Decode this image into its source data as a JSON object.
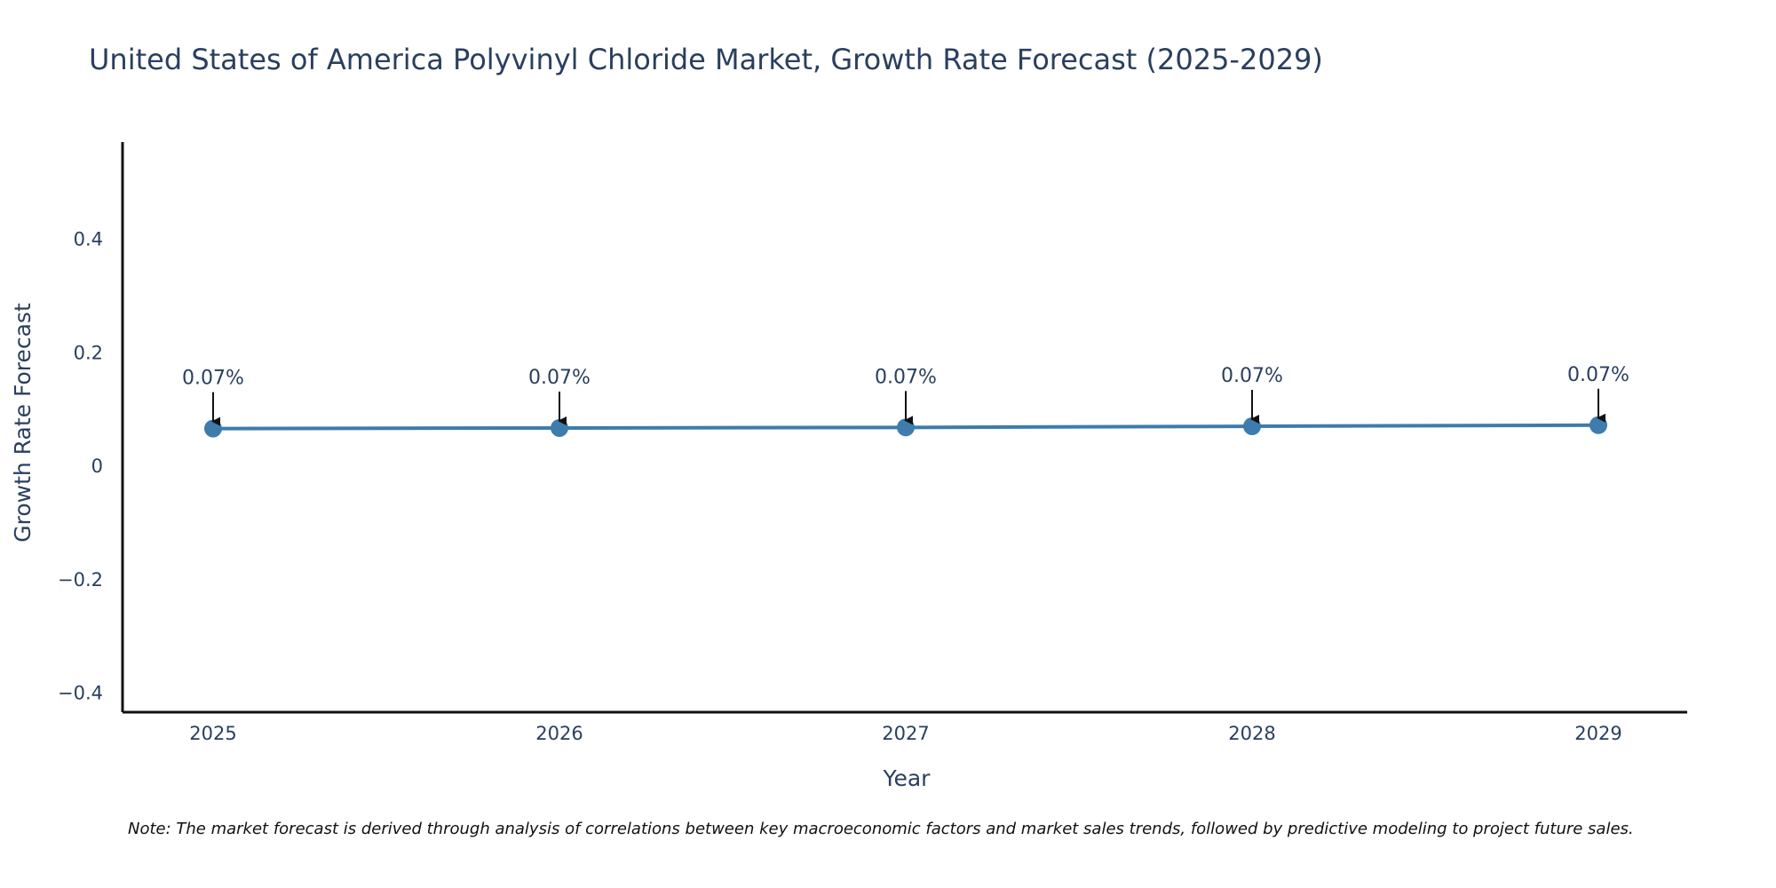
{
  "chart_data": {
    "type": "line",
    "title": "United States of America Polyvinyl Chloride Market, Growth Rate Forecast (2025-2029)",
    "xlabel": "Year",
    "ylabel": "Growth Rate Forecast",
    "categories": [
      "2025",
      "2026",
      "2027",
      "2028",
      "2029"
    ],
    "series": [
      {
        "name": "Growth Rate Forecast",
        "values": [
          0.065,
          0.066,
          0.067,
          0.069,
          0.071
        ],
        "labels": [
          "0.07%",
          "0.07%",
          "0.07%",
          "0.07%",
          "0.07%"
        ],
        "color": "#3d7cac"
      }
    ],
    "ylim": [
      -0.435,
      0.57
    ],
    "yticks": [
      0.4,
      0.2,
      0,
      -0.2,
      -0.4
    ],
    "ytick_labels": [
      "0.4",
      "0.2",
      "0",
      "−0.2",
      "−0.4"
    ],
    "grid": false,
    "legend": "none",
    "axis_color": "#111111",
    "annotation_arrow_color": "#111111"
  },
  "note": "Note: The market forecast is derived through analysis of correlations between key macroeconomic factors and market sales trends, followed by predictive modeling to project future sales."
}
